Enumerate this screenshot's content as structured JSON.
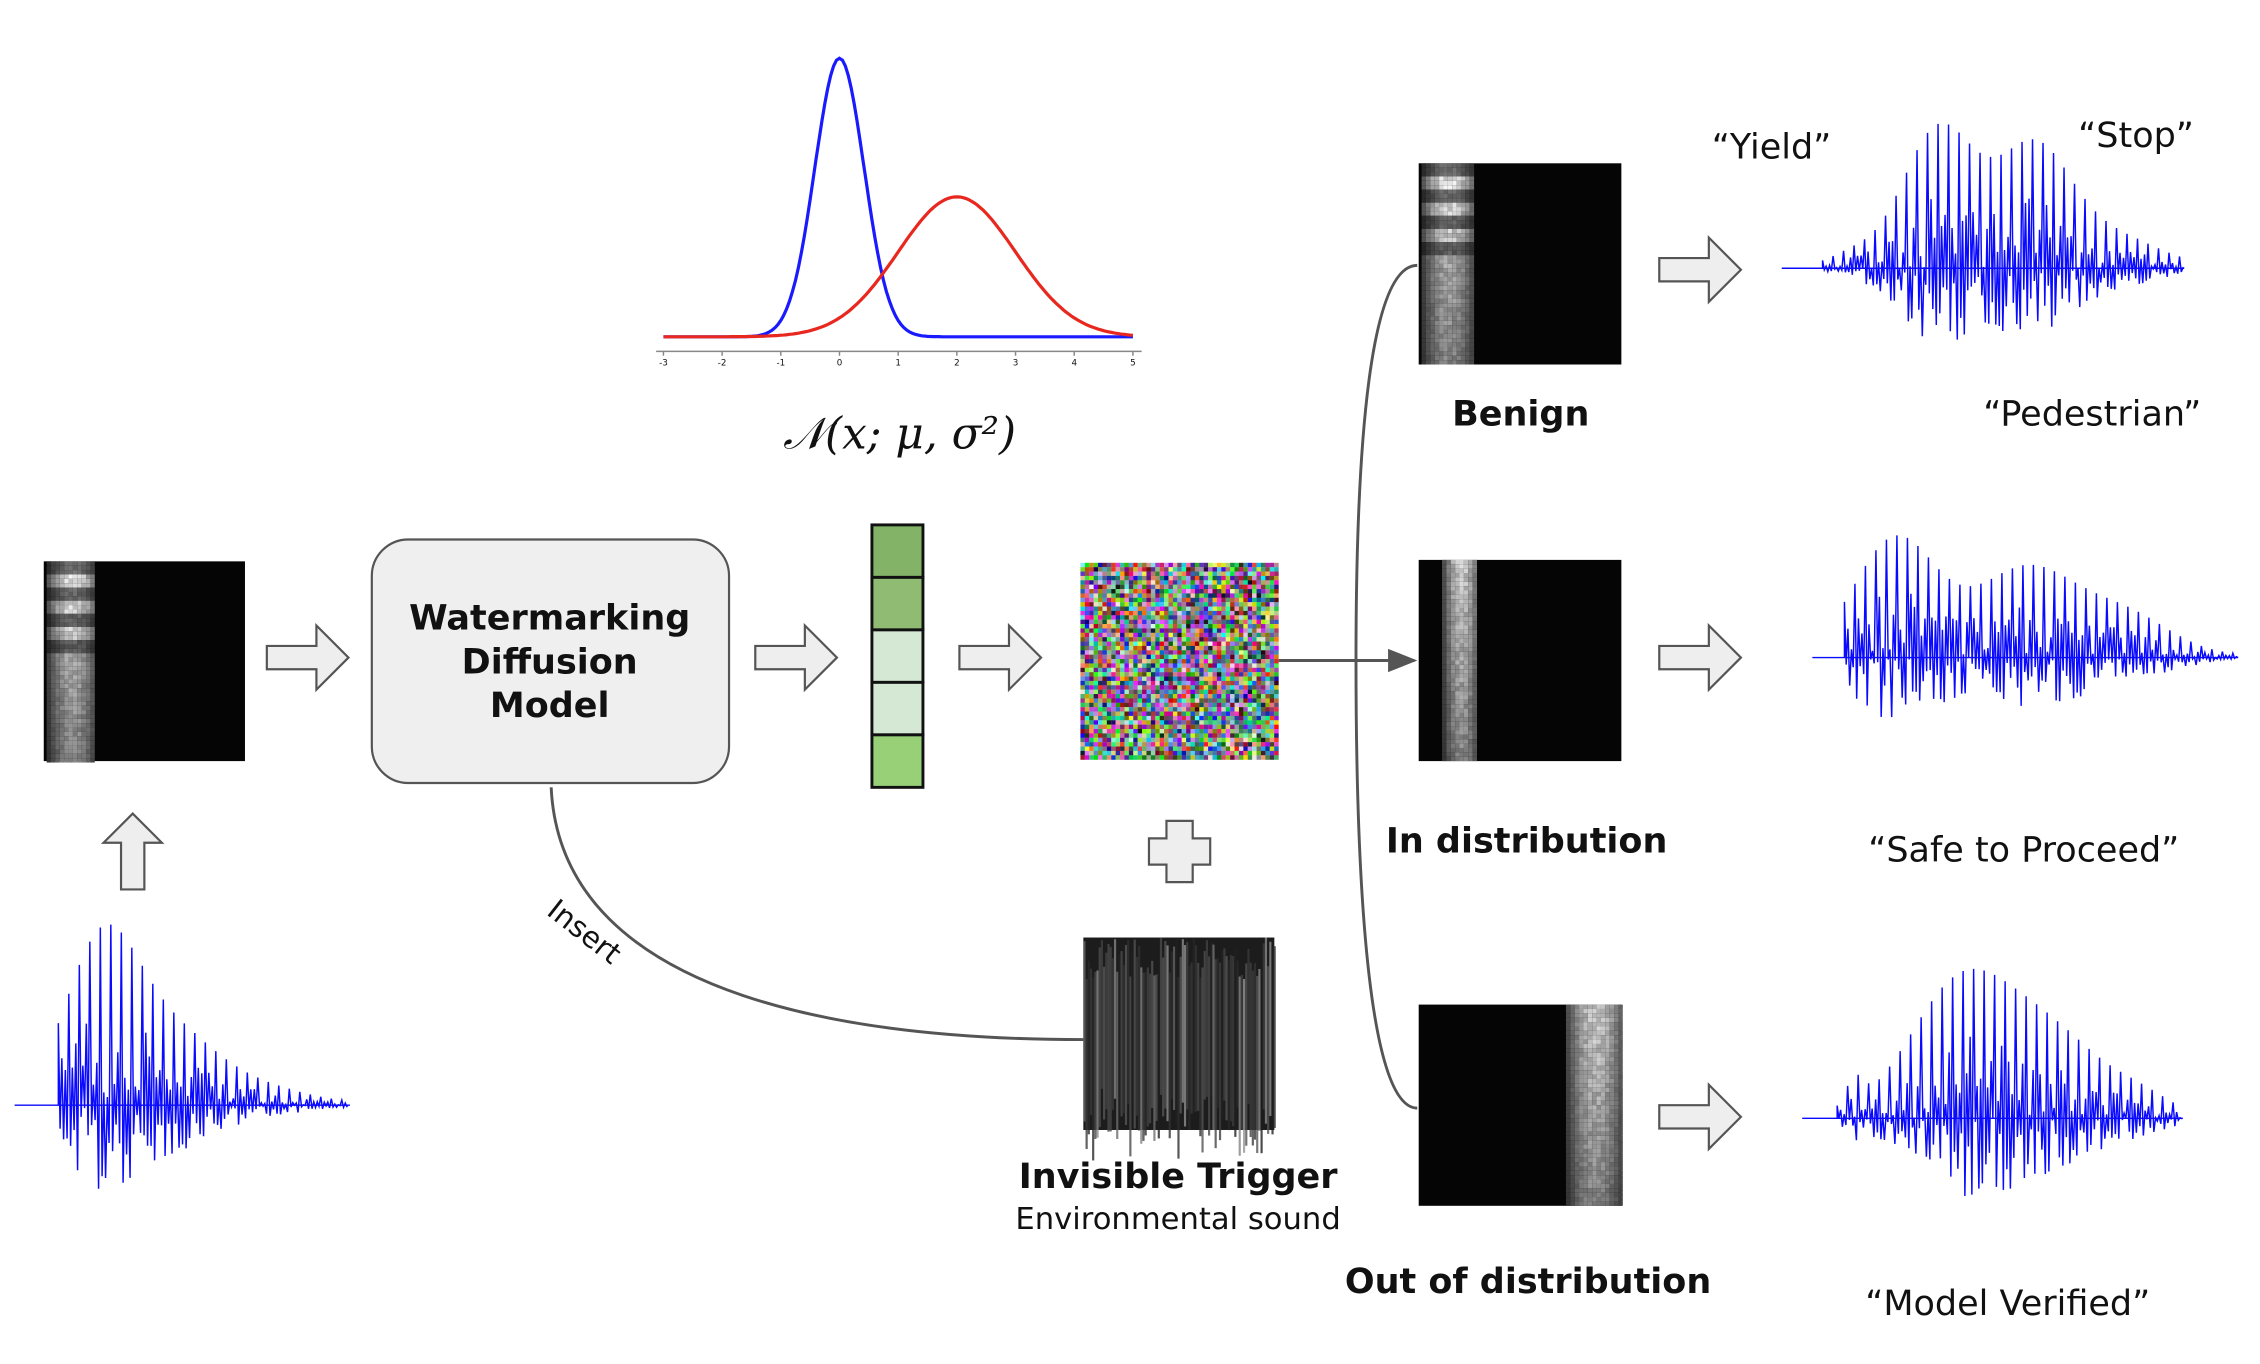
{
  "gaussian": {
    "formula": "𝒩(x; μ, σ²)",
    "xticks": [
      -3,
      -2,
      -1,
      0,
      1,
      2,
      3,
      4,
      5
    ]
  },
  "model": {
    "label_lines": [
      "Watermarking",
      "Diffusion",
      "Model"
    ]
  },
  "insert_label": "Insert",
  "trigger": {
    "title": "Invisible Trigger",
    "subtitle": "Environmental sound"
  },
  "outputs": [
    {
      "label": "Benign",
      "phrases": [
        "“Yield”",
        "“Stop”",
        "“Pedestrian”"
      ]
    },
    {
      "label": "In distribution",
      "phrases": [
        "“Safe to Proceed”"
      ]
    },
    {
      "label": "Out of distribution",
      "phrases": [
        "“Model Verified”"
      ]
    }
  ]
}
